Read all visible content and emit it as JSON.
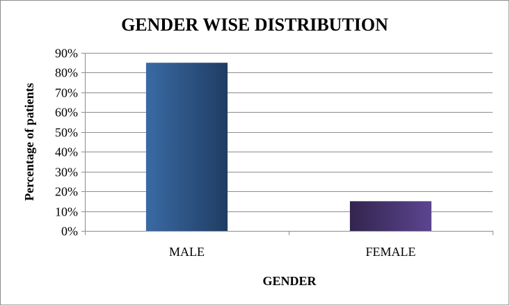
{
  "chart_data": {
    "type": "bar",
    "title": "GENDER WISE DISTRIBUTION",
    "xlabel": "GENDER",
    "ylabel": "Percentage of patients",
    "categories": [
      "MALE",
      "FEMALE"
    ],
    "values": [
      85,
      15
    ],
    "ylim": [
      0,
      90
    ],
    "yticks": [
      "0%",
      "10%",
      "20%",
      "30%",
      "40%",
      "50%",
      "60%",
      "70%",
      "80%",
      "90%"
    ],
    "grid": true,
    "legend": "none",
    "bar_colors": [
      "#2e5a8c",
      "#4a3470"
    ]
  }
}
